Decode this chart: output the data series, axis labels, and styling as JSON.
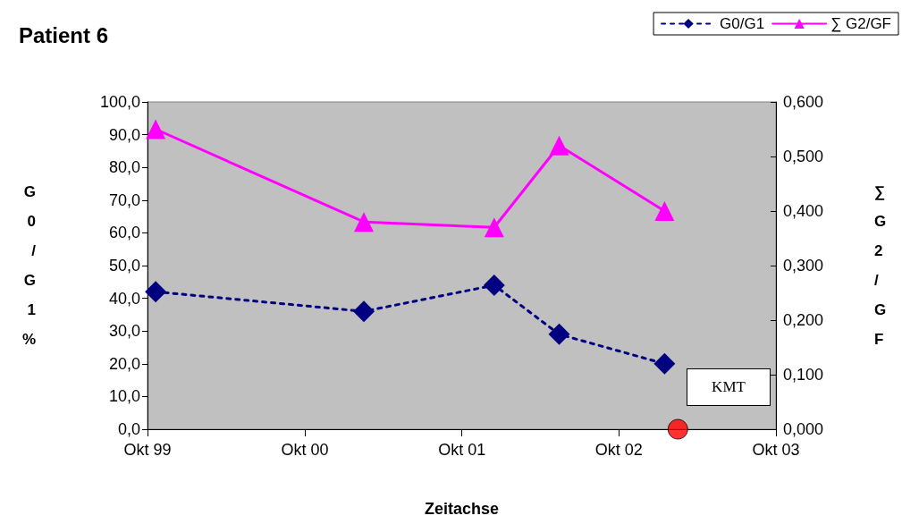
{
  "chart_data": {
    "type": "line",
    "title": "Patient 6",
    "xlabel": "Zeitachse",
    "ylabel": "G0/G1 %",
    "y2label": "∑ G2/GF",
    "series": [
      {
        "name": "G0/G1",
        "color": "#000080",
        "marker": "diamond",
        "line_style": "dashed",
        "x": [
          "1999-10-20",
          "2001-02-15",
          "2001-12-15",
          "2002-05-15",
          "2003-01-15"
        ],
        "values": [
          42,
          36,
          44,
          29,
          20
        ]
      },
      {
        "name": "∑ G2/GF",
        "color": "#ff00ff",
        "marker": "triangle",
        "line_style": "solid",
        "axis": "y2",
        "x": [
          "1999-10-20",
          "2001-02-15",
          "2001-12-15",
          "2002-05-15",
          "2003-01-15"
        ],
        "values": [
          0.55,
          0.38,
          0.37,
          0.52,
          0.4
        ]
      },
      {
        "type": "scatter",
        "color": "#ff0000",
        "marker": "circle",
        "x": [
          "2003-02-15"
        ],
        "values": [
          0
        ]
      }
    ],
    "xlim": [
      "1999-10-01",
      "2003-10-01"
    ],
    "xticks": [
      {
        "value": "1999-10-01",
        "label": "Okt 99"
      },
      {
        "value": "2000-10-01",
        "label": "Okt 00"
      },
      {
        "value": "2001-10-01",
        "label": "Okt 01"
      },
      {
        "value": "2002-10-01",
        "label": "Okt 02"
      },
      {
        "value": "2003-10-01",
        "label": "Okt 03"
      }
    ],
    "ylim": [
      0,
      100
    ],
    "yticks": [
      {
        "value": 0,
        "label": "0,0"
      },
      {
        "value": 10,
        "label": "10,0"
      },
      {
        "value": 20,
        "label": "20,0"
      },
      {
        "value": 30,
        "label": "30,0"
      },
      {
        "value": 40,
        "label": "40,0"
      },
      {
        "value": 50,
        "label": "50,0"
      },
      {
        "value": 60,
        "label": "60,0"
      },
      {
        "value": 70,
        "label": "70,0"
      },
      {
        "value": 80,
        "label": "80,0"
      },
      {
        "value": 90,
        "label": "90,0"
      },
      {
        "value": 100,
        "label": "100,0"
      }
    ],
    "y2lim": [
      0,
      0.6
    ],
    "y2ticks": [
      {
        "value": 0,
        "label": "0,000"
      },
      {
        "value": 0.1,
        "label": "0,100"
      },
      {
        "value": 0.2,
        "label": "0,200"
      },
      {
        "value": 0.3,
        "label": "0,300"
      },
      {
        "value": 0.4,
        "label": "0,400"
      },
      {
        "value": 0.5,
        "label": "0,500"
      },
      {
        "value": 0.6,
        "label": "0,600"
      }
    ],
    "annotations": [
      "KMT"
    ],
    "grid": false,
    "legend": "top right"
  }
}
